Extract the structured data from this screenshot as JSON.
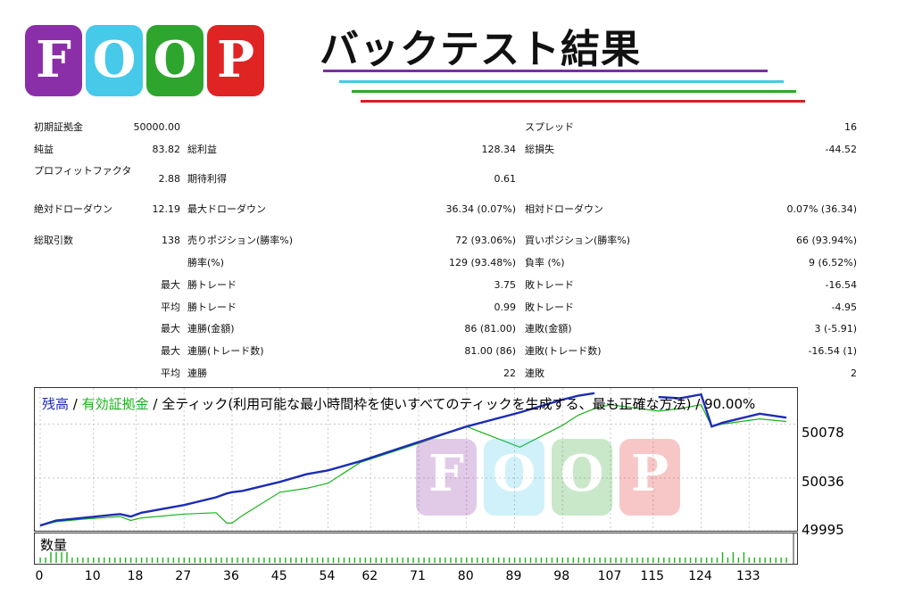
{
  "header": {
    "logo_letters": [
      "F",
      "O",
      "O",
      "P"
    ],
    "logo_colors": [
      "#8b2fa8",
      "#47c9ea",
      "#2ea62e",
      "#e02424"
    ],
    "title": "バックテスト結果",
    "line_colors": [
      "#7b2fa0",
      "#47c9ea",
      "#2ea62e",
      "#d62020"
    ]
  },
  "stats": {
    "initial_label": "初期証拠金",
    "initial_value": "50000.00",
    "spread_label": "スプレッド",
    "spread_value": "16",
    "net_label": "純益",
    "net_value": "83.82",
    "gross_profit_label": "総利益",
    "gross_profit_value": "128.34",
    "gross_loss_label": "総損失",
    "gross_loss_value": "-44.52",
    "pf_label": "プロフィットファクタ",
    "pf_value": "2.88",
    "expected_label": "期待利得",
    "expected_value": "0.61",
    "abs_dd_label": "絶対ドローダウン",
    "abs_dd_value": "12.19",
    "max_dd_label": "最大ドローダウン",
    "max_dd_value": "36.34 (0.07%)",
    "rel_dd_label": "相対ドローダウン",
    "rel_dd_value": "0.07% (36.34)",
    "total_trades_label": "総取引数",
    "total_trades_value": "138",
    "short_label": "売りポジション(勝率%)",
    "short_value": "72 (93.06%)",
    "long_label": "買いポジション(勝率%)",
    "long_value": "66 (93.94%)",
    "win_rate_label": "勝率(%)",
    "win_rate_value": "129 (93.48%)",
    "loss_rate_label": "負率 (%)",
    "loss_rate_value": "9 (6.52%)",
    "rows": [
      {
        "prefix": "最大",
        "win_label": "勝トレード",
        "win_value": "3.75",
        "loss_label": "敗トレード",
        "loss_value": "-16.54"
      },
      {
        "prefix": "平均",
        "win_label": "勝トレード",
        "win_value": "0.99",
        "loss_label": "敗トレード",
        "loss_value": "-4.95"
      },
      {
        "prefix": "最大",
        "win_label": "連勝(金額)",
        "win_value": "86 (81.00)",
        "loss_label": "連敗(金額)",
        "loss_value": "3 (-5.91)"
      },
      {
        "prefix": "最大",
        "win_label": "連勝(トレード数)",
        "win_value": "81.00 (86)",
        "loss_label": "連敗(トレード数)",
        "loss_value": "-16.54 (1)"
      },
      {
        "prefix": "平均",
        "win_label": "連勝",
        "win_value": "22",
        "loss_label": "連敗",
        "loss_value": "2"
      }
    ]
  },
  "chart": {
    "legend_balance": "残高",
    "legend_sep1": " / ",
    "legend_equity": "有効証拠金",
    "legend_rest": " / 全ティック(利用可能な最小時間枠を使いすべてのティックを生成する、最も正確な方法) / 90.00%",
    "volume_label": "数量",
    "colors": {
      "balance": "#1c2db5",
      "equity": "#19b319",
      "volume": "#19b319",
      "grid": "#c8c8c8"
    }
  },
  "chart_data": {
    "type": "line",
    "ylim": [
      49995,
      50106
    ],
    "yticks": [
      "50078",
      "50036",
      "49995"
    ],
    "xticks": [
      "0",
      "10",
      "18",
      "27",
      "36",
      "45",
      "54",
      "62",
      "71",
      "80",
      "89",
      "98",
      "107",
      "115",
      "124",
      "133"
    ],
    "x": [
      0,
      3,
      8,
      15,
      17,
      19,
      27,
      33,
      35,
      36,
      38,
      45,
      50,
      54,
      60,
      71,
      80,
      90,
      98,
      101,
      104,
      107,
      116,
      120,
      124,
      126,
      128,
      135,
      140
    ],
    "series": [
      {
        "name": "残高",
        "values": [
          49999,
          50003,
          50005,
          50008,
          50006,
          50009,
          50015,
          50021,
          50024,
          50025,
          50026,
          50033,
          50039,
          50042,
          50049,
          50064,
          50076,
          50087,
          50097,
          50100,
          50102,
          null,
          50099,
          50098,
          50101,
          50076,
          50079,
          50086,
          50083
        ]
      },
      {
        "name": "有効証拠金",
        "values": [
          49999,
          50002,
          50004,
          50006,
          50003,
          50005,
          50008,
          50009,
          50001,
          50001,
          50007,
          50025,
          50028,
          50032,
          50048,
          50063,
          50076,
          50060,
          50077,
          50085,
          50090,
          50093,
          50088,
          50090,
          50093,
          50076,
          50078,
          50082,
          50080
        ]
      }
    ],
    "volume": "uniform small bars with a few taller spikes near trades 5, 128-132"
  }
}
